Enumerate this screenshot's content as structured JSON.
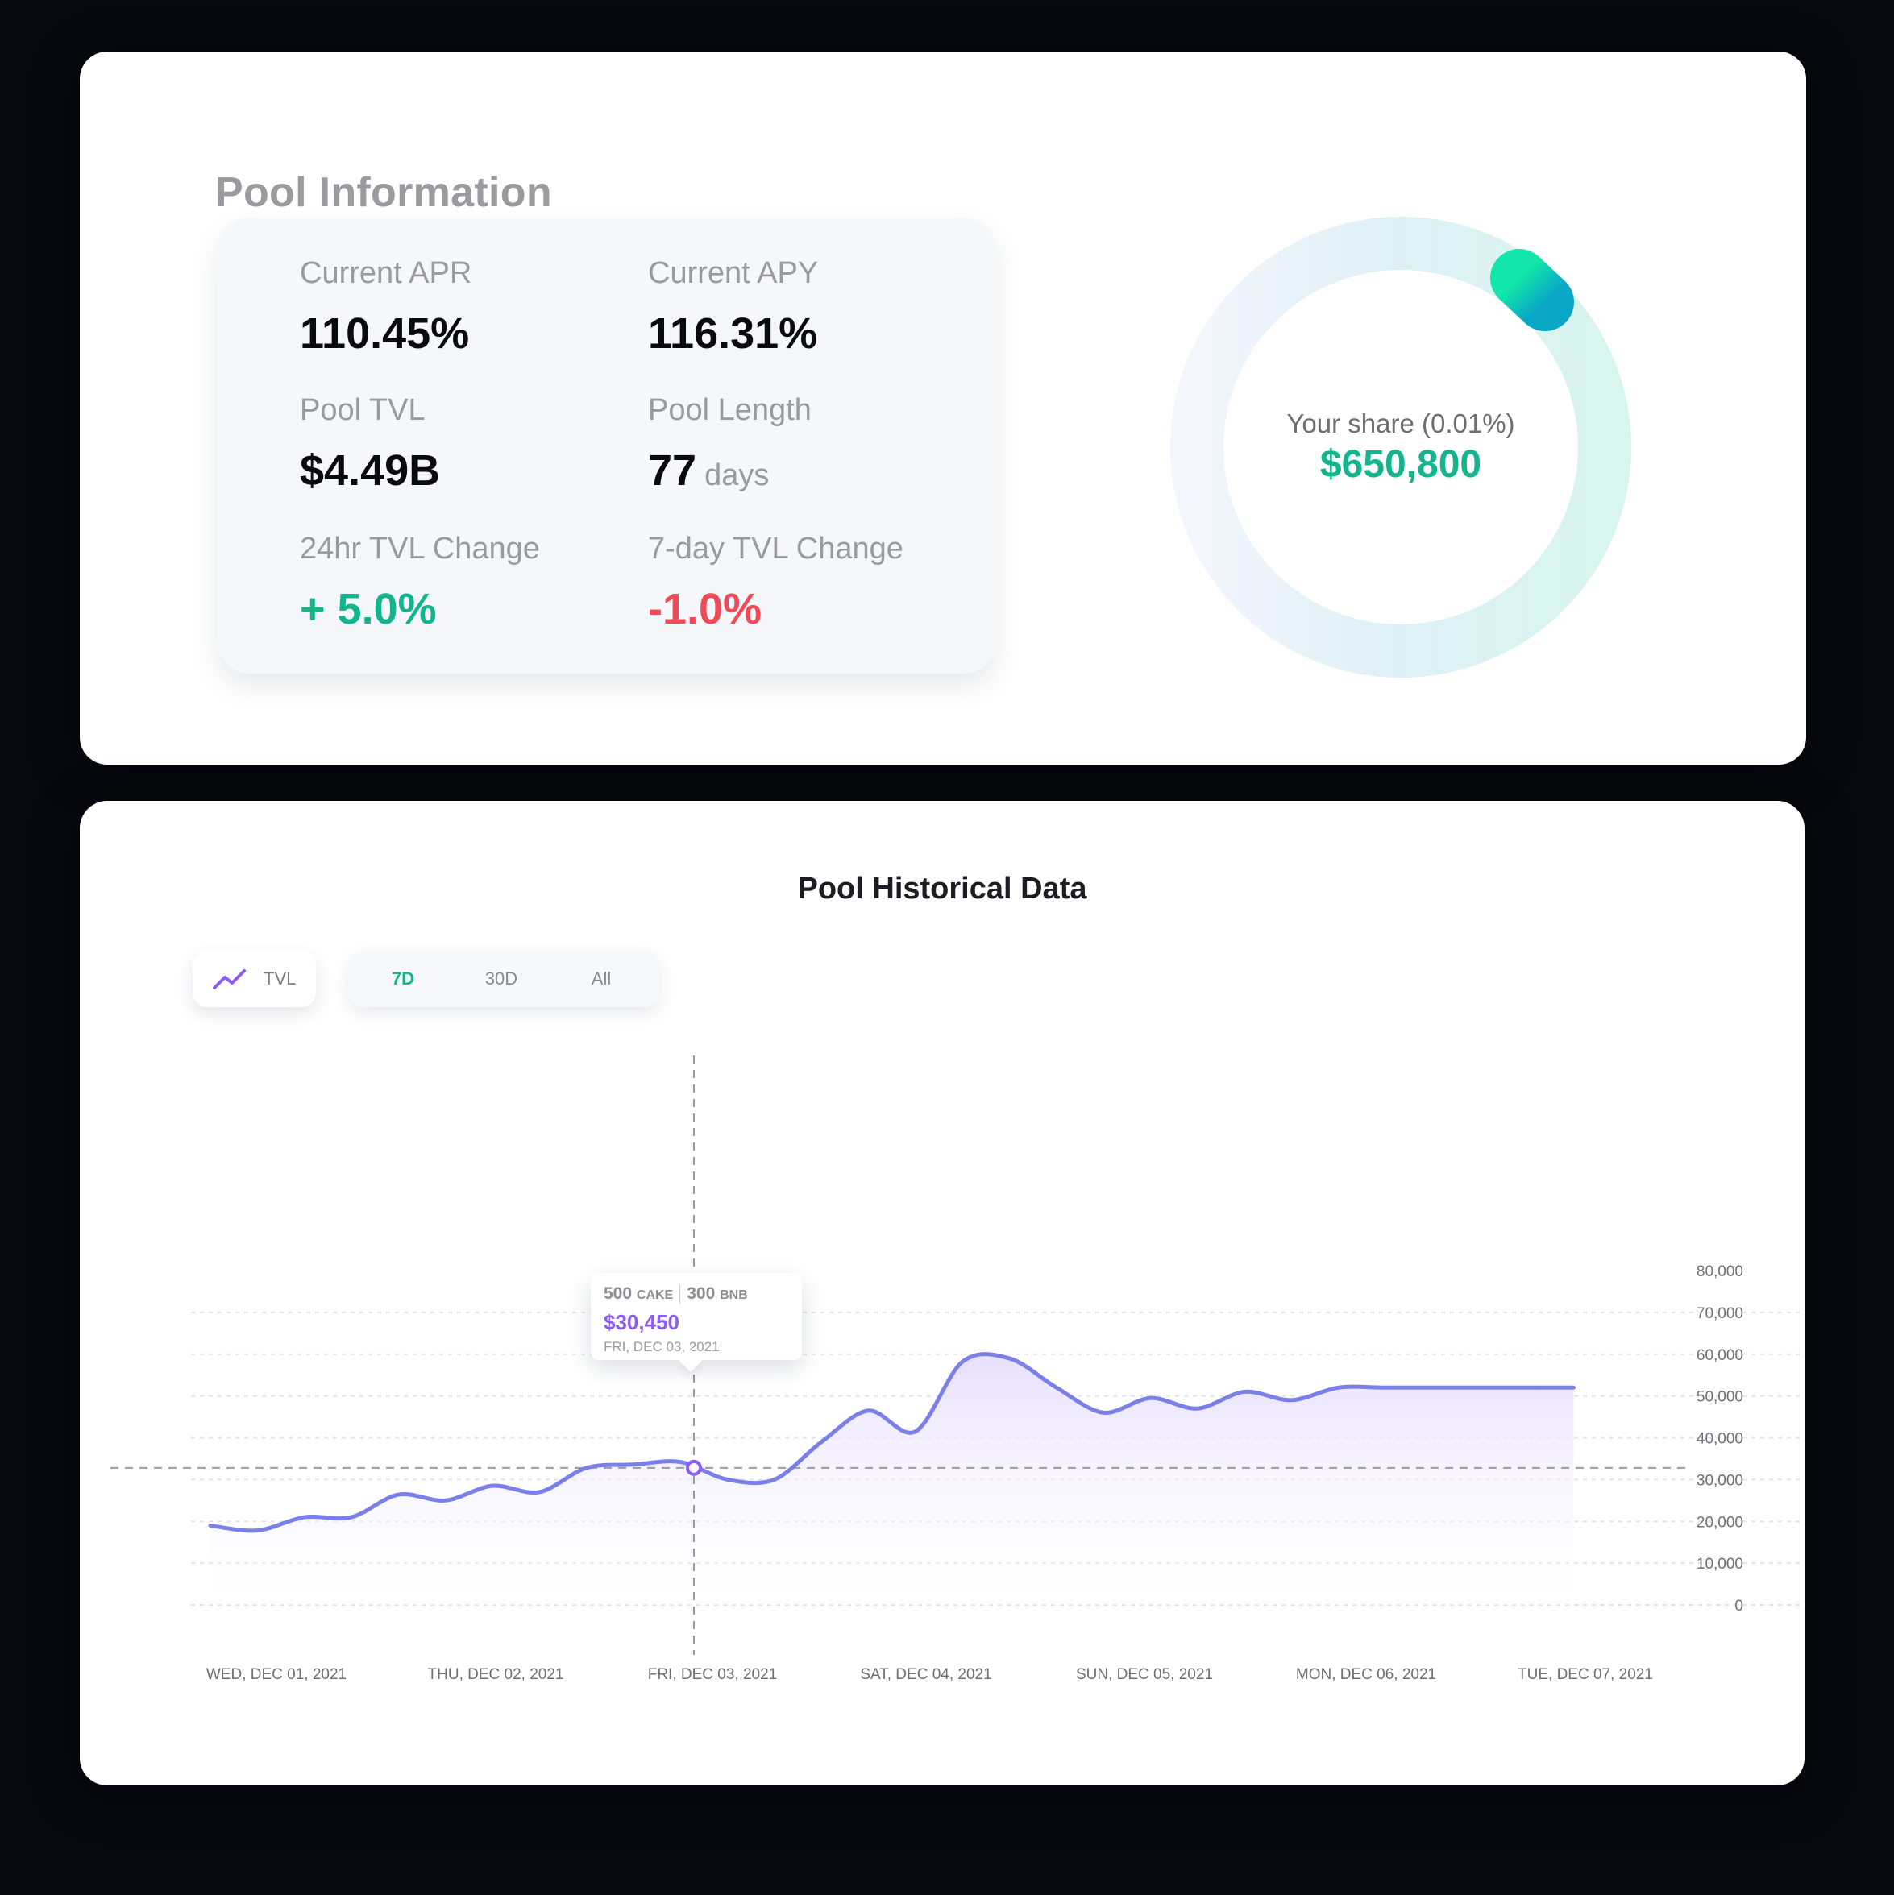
{
  "pool_info": {
    "title": "Pool Information",
    "stats": [
      {
        "label": "Current APR",
        "value": "110.45%"
      },
      {
        "label": "Current APY",
        "value": "116.31%"
      },
      {
        "label": "Pool TVL",
        "value": "$4.49B"
      },
      {
        "label": "Pool Length",
        "value": "77",
        "unit": "days"
      },
      {
        "label": "24hr TVL Change",
        "value": "+ 5.0%"
      },
      {
        "label": "7-day TVL Change",
        "value": "-1.0%"
      }
    ],
    "share": {
      "label": "Your share (0.01%)",
      "value": "$650,800",
      "fraction": 0.0001
    }
  },
  "history": {
    "title": "Pool Historical Data",
    "metric_label": "TVL",
    "ranges": [
      "7D",
      "30D",
      "All"
    ],
    "active_range": "7D",
    "tooltip": {
      "cake": "500",
      "cake_unit": "CAKE",
      "bnb": "300",
      "bnb_unit": "BNB",
      "value": "$30,450",
      "date": "FRI, DEC 03, 2021"
    }
  },
  "chart_data": {
    "type": "area",
    "x_labels": [
      "WED, DEC 01, 2021",
      "THU, DEC 02, 2021",
      "FRI, DEC 03, 2021",
      "SAT, DEC 04, 2021",
      "SUN, DEC 05, 2021",
      "MON, DEC 06, 2021",
      "TUE, DEC 07, 2021"
    ],
    "y_ticks": [
      "0",
      "10,000",
      "20,000",
      "30,000",
      "40,000",
      "50,000",
      "60,000",
      "70,000",
      "80,000"
    ],
    "ylim": [
      0,
      80000
    ],
    "x": [
      0,
      0.25,
      0.5,
      0.75,
      1.0,
      1.25,
      1.5,
      1.75,
      2.0,
      2.25,
      2.5,
      2.75,
      3.0,
      3.25,
      3.5,
      3.75,
      4.0,
      4.25,
      4.5,
      4.75,
      5.0,
      5.25,
      5.5,
      5.75,
      6.0,
      6.25,
      6.5,
      6.75,
      7.0,
      7.25,
      7.5
    ],
    "y": [
      19000,
      17800,
      21000,
      21000,
      26400,
      25000,
      28500,
      27000,
      32800,
      33600,
      34200,
      30000,
      30000,
      39000,
      46500,
      41500,
      58200,
      59000,
      52000,
      46000,
      49500,
      47000,
      51000,
      49000,
      52000,
      52000,
      52000,
      52000,
      52000,
      52000,
      52000
    ],
    "grid": true,
    "highlight": {
      "x_label": "FRI, DEC 03, 2021",
      "value": 30450
    },
    "colors": {
      "line": "#7b7fe8",
      "fill": "#ece6ff",
      "highlight": "#8b5cf6"
    }
  },
  "colors": {
    "positive": "#12b58c",
    "negative": "#ef4a55",
    "accent": "#8b5cf6"
  }
}
